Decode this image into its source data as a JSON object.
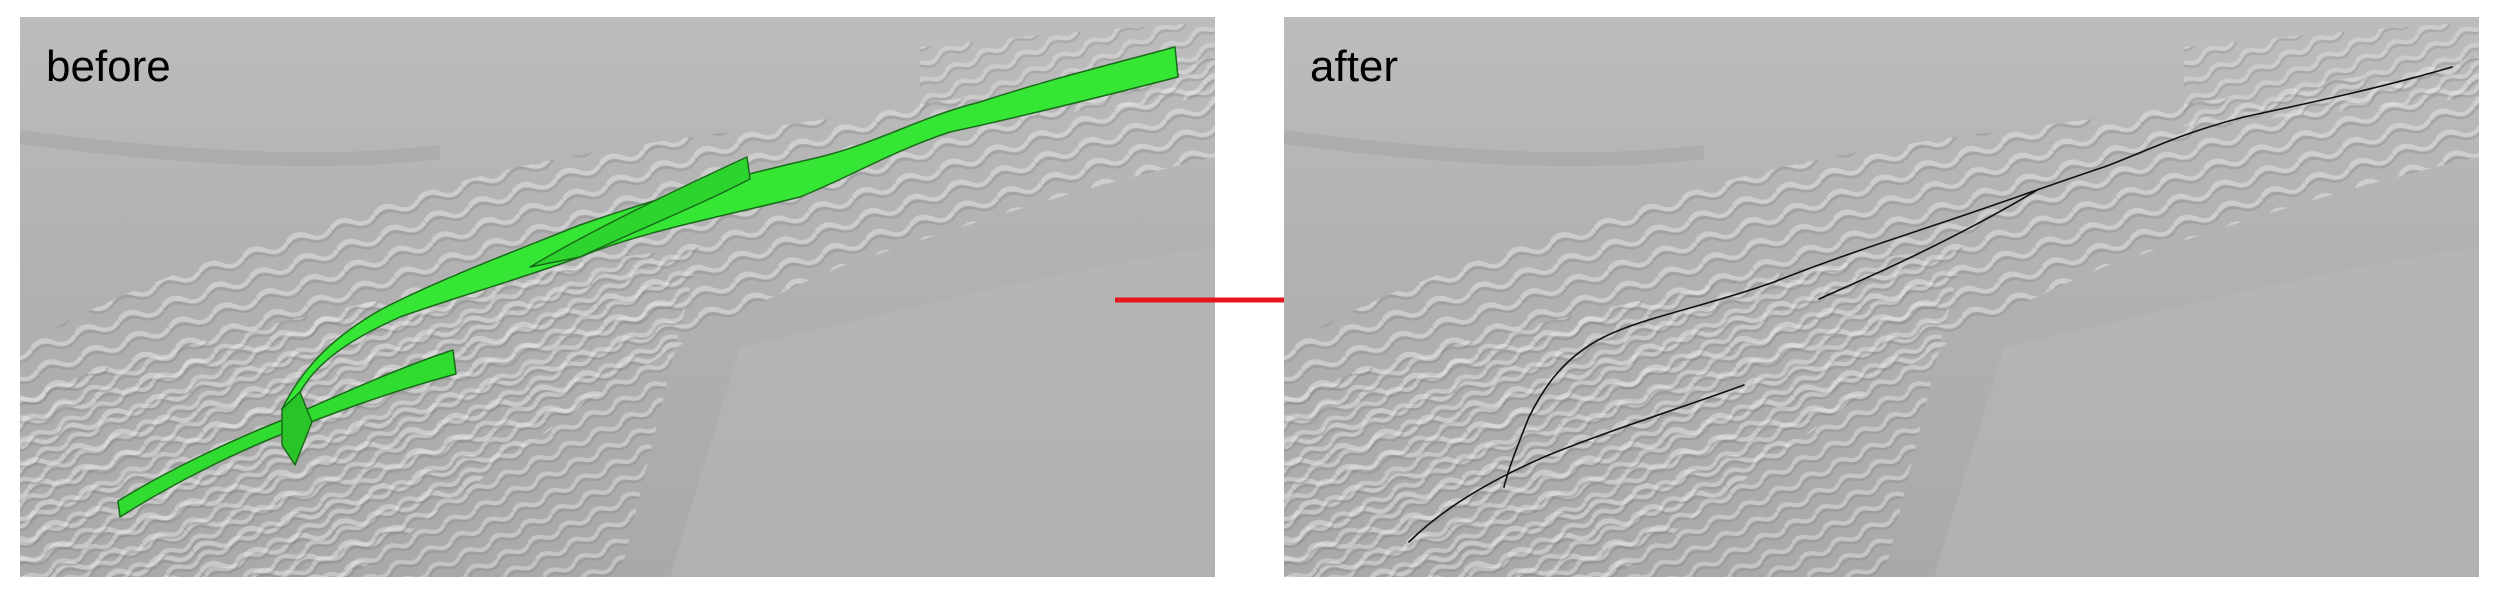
{
  "panels": {
    "before": {
      "label": "before"
    },
    "after": {
      "label": "after"
    }
  },
  "colors": {
    "terrain_base": "#b4b4b4",
    "ribbon_fill": "#35e635",
    "ribbon_edge": "#1a6a1a",
    "line": "#111111",
    "arrow": "#e8141e"
  }
}
